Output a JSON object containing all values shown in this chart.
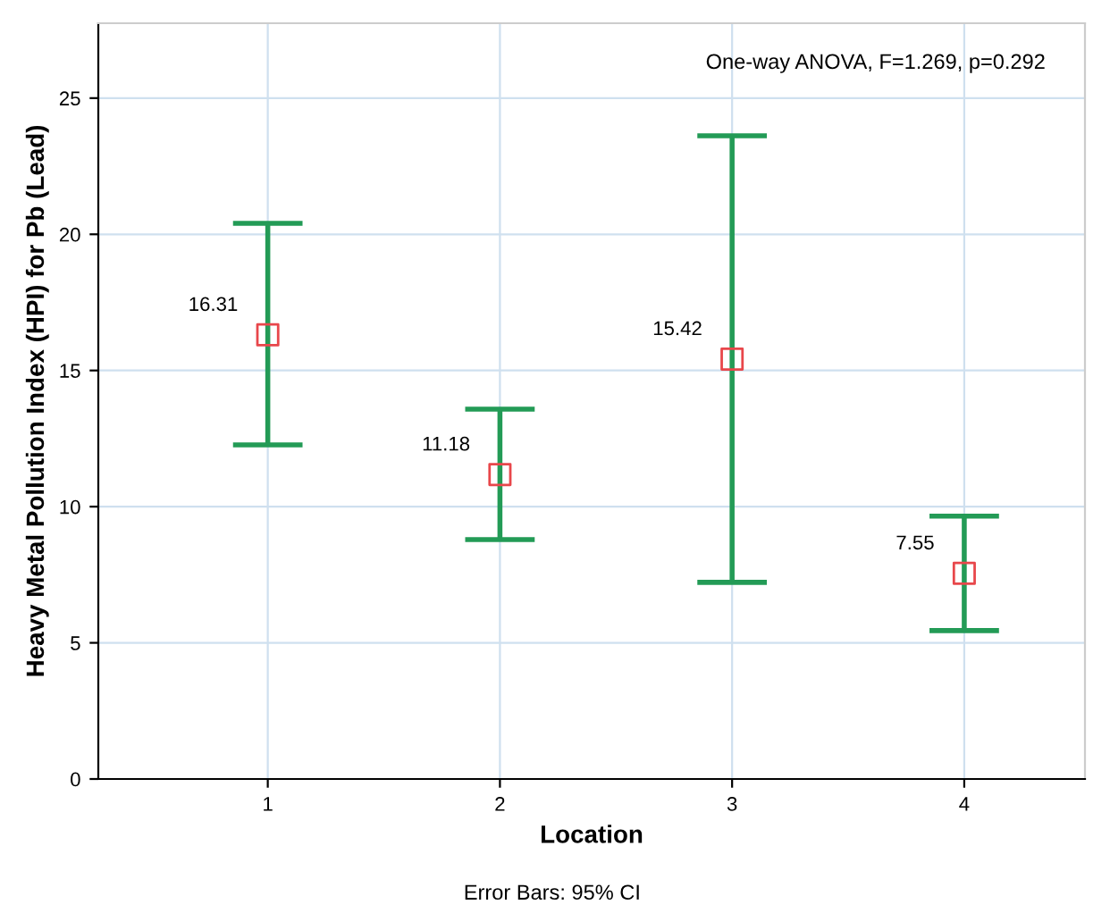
{
  "chart_data": {
    "type": "scatter",
    "xlabel": "Location",
    "ylabel": "Heavy Metal Pollution Index (HPI) for Pb (Lead)",
    "categories": [
      "1",
      "2",
      "3",
      "4"
    ],
    "series": [
      {
        "color": "#239b56",
        "colors": [
          "#e8474b",
          "#e8474b",
          "#e8474b",
          "#e8474b"
        ],
        "values": [
          16.31,
          11.18,
          15.42,
          7.55
        ],
        "errors": [
          [
            12.27,
            20.4
          ],
          [
            8.79,
            13.58
          ],
          [
            7.22,
            23.62
          ],
          [
            5.45,
            9.65
          ]
        ]
      }
    ],
    "data_labels": true,
    "marker": "square",
    "ylim": [
      0,
      27.75
    ],
    "yticks": [
      0,
      5,
      10,
      15,
      20,
      25
    ],
    "grid": true,
    "legend": false,
    "annotations": [
      "One-way ANOVA, F=1.269, p=0.292",
      "Error Bars: 95% CI"
    ]
  }
}
